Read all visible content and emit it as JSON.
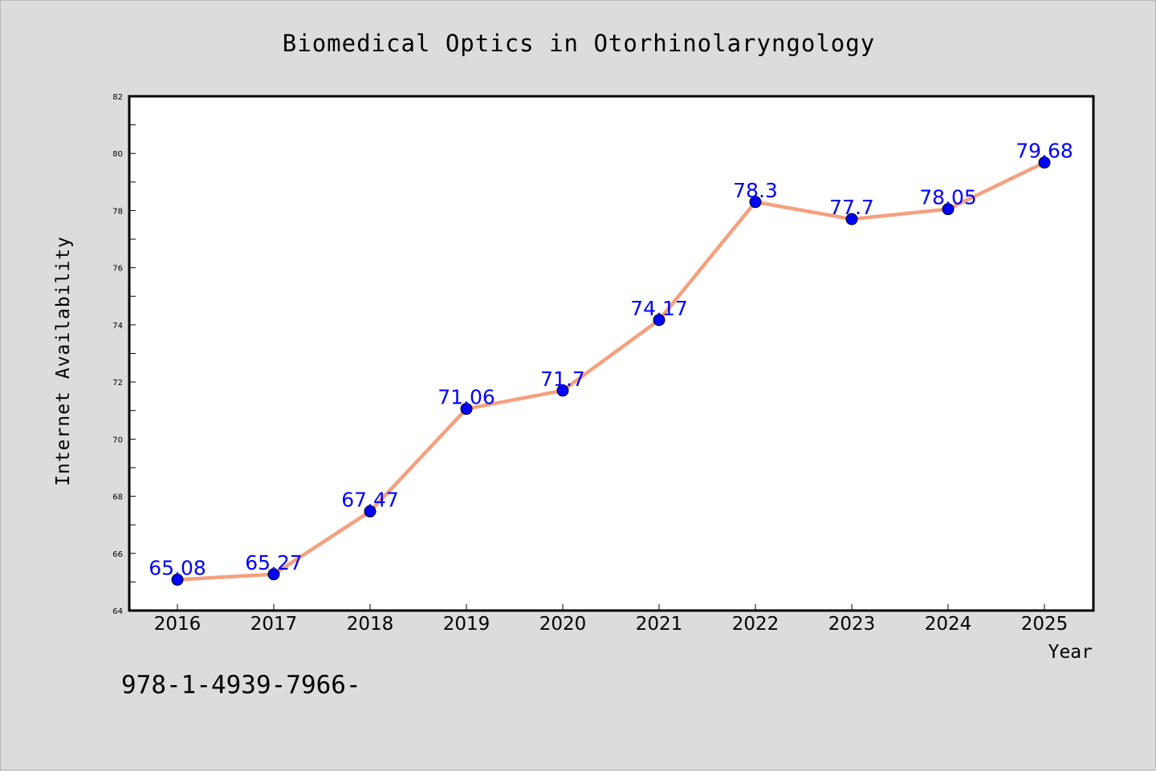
{
  "chart_data": {
    "type": "line",
    "title": "Biomedical Optics in Otorhinolaryngology",
    "xlabel": "Year",
    "ylabel": "Internet Availability",
    "categories": [
      "2016",
      "2017",
      "2018",
      "2019",
      "2020",
      "2021",
      "2022",
      "2023",
      "2024",
      "2025"
    ],
    "values": [
      65.08,
      65.27,
      67.47,
      71.06,
      71.7,
      74.17,
      78.3,
      77.7,
      78.05,
      79.68
    ],
    "data_labels": [
      "65.08",
      "65.27",
      "67.47",
      "71.06",
      "71.7",
      "74.17",
      "78.3",
      "77.7",
      "78.05",
      "79.68"
    ],
    "ylim": [
      64,
      82
    ],
    "yticks": [
      "64",
      "66",
      "68",
      "70",
      "72",
      "74",
      "76",
      "78",
      "80",
      "82"
    ],
    "line_color": "#f4a07f",
    "marker_color": "#0000ff",
    "label_color": "#0000ff",
    "grid": false
  },
  "footer": {
    "isbn_text": "978-1-4939-7966-"
  }
}
